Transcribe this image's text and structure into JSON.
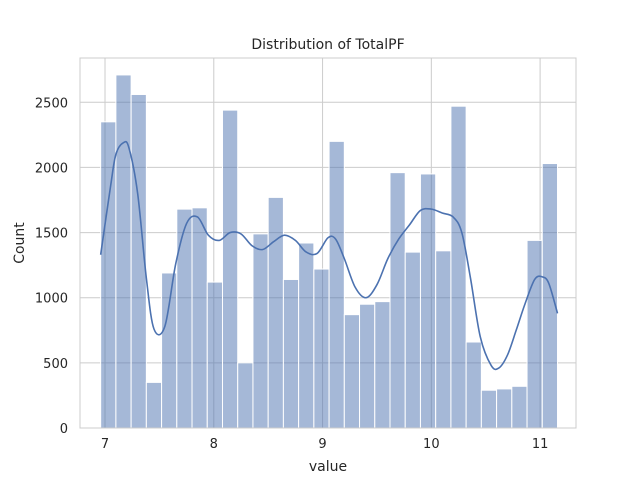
{
  "chart_data": {
    "type": "bar",
    "title": "Distribution of TotalPF",
    "xlabel": "value",
    "ylabel": "Count",
    "xlim": [
      6.77,
      11.33
    ],
    "ylim": [
      0,
      2840
    ],
    "xticks": [
      7,
      8,
      9,
      10,
      11
    ],
    "yticks": [
      0,
      500,
      1000,
      1500,
      2000,
      2500
    ],
    "grid": true,
    "bar_color": "#4c72b0",
    "bar_opacity": 0.5,
    "kde_color": "#4c72b0",
    "bin_edges": [
      6.96,
      7.1,
      7.24,
      7.38,
      7.52,
      7.66,
      7.8,
      7.94,
      8.08,
      8.22,
      8.36,
      8.5,
      8.64,
      8.78,
      8.92,
      9.06,
      9.2,
      9.34,
      9.48,
      9.62,
      9.76,
      9.9,
      10.04,
      10.18,
      10.32,
      10.46,
      10.6,
      10.74,
      10.88,
      11.02,
      11.16
    ],
    "counts": [
      2350,
      2710,
      2560,
      350,
      1190,
      1680,
      1690,
      1120,
      2440,
      500,
      1490,
      1770,
      1140,
      1420,
      1220,
      2200,
      870,
      950,
      970,
      1960,
      1350,
      1950,
      1360,
      2470,
      660,
      290,
      300,
      320,
      1440,
      2030
    ],
    "kde": {
      "x": [
        6.96,
        7.05,
        7.1,
        7.17,
        7.22,
        7.3,
        7.38,
        7.45,
        7.55,
        7.65,
        7.75,
        7.85,
        7.95,
        8.05,
        8.15,
        8.25,
        8.35,
        8.45,
        8.55,
        8.65,
        8.75,
        8.85,
        8.95,
        9.05,
        9.12,
        9.2,
        9.3,
        9.4,
        9.5,
        9.6,
        9.7,
        9.8,
        9.9,
        10.0,
        10.1,
        10.2,
        10.28,
        10.36,
        10.45,
        10.55,
        10.62,
        10.7,
        10.78,
        10.86,
        10.95,
        11.02,
        11.08,
        11.16
      ],
      "y": [
        1330,
        1850,
        2100,
        2190,
        2150,
        1800,
        1150,
        760,
        780,
        1260,
        1570,
        1620,
        1480,
        1440,
        1500,
        1490,
        1400,
        1370,
        1430,
        1480,
        1440,
        1350,
        1340,
        1460,
        1450,
        1300,
        1080,
        1000,
        1100,
        1300,
        1450,
        1560,
        1670,
        1680,
        1650,
        1620,
        1500,
        1150,
        700,
        480,
        460,
        560,
        750,
        950,
        1140,
        1160,
        1110,
        880
      ]
    }
  }
}
